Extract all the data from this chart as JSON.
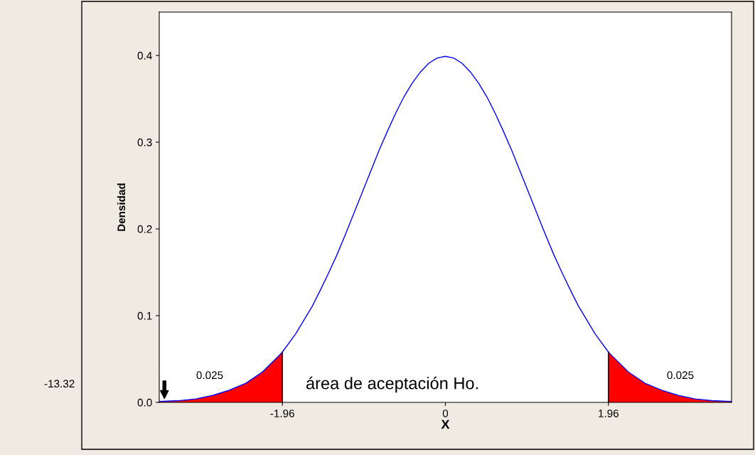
{
  "chart_data": {
    "type": "line",
    "xlabel": "X",
    "ylabel": "Densidad",
    "xlim": [
      -3.44,
      3.44
    ],
    "ylim": [
      0,
      0.45
    ],
    "xticks": [
      -1.96,
      0,
      1.96
    ],
    "yticks": [
      {
        "value": 0,
        "label": "0.0"
      },
      0.1,
      0.2,
      0.3,
      0.4
    ],
    "grid": false,
    "series": [
      {
        "color": "#0000ff",
        "x": [
          -3.44,
          -3.2,
          -3.0,
          -2.8,
          -2.6,
          -2.4,
          -2.2,
          -2.0,
          -1.96,
          -1.8,
          -1.6,
          -1.5,
          -1.4,
          -1.3,
          -1.2,
          -1.1,
          -1.0,
          -0.9,
          -0.8,
          -0.7,
          -0.6,
          -0.5,
          -0.4,
          -0.3,
          -0.2,
          -0.1,
          0,
          0.1,
          0.2,
          0.3,
          0.4,
          0.5,
          0.6,
          0.7,
          0.8,
          0.9,
          1.0,
          1.1,
          1.2,
          1.3,
          1.4,
          1.5,
          1.6,
          1.8,
          1.96,
          2.0,
          2.2,
          2.4,
          2.6,
          2.8,
          3.0,
          3.2,
          3.44
        ],
        "values": [
          0.001,
          0.002,
          0.004,
          0.008,
          0.014,
          0.022,
          0.035,
          0.054,
          0.058,
          0.079,
          0.111,
          0.13,
          0.15,
          0.171,
          0.194,
          0.218,
          0.242,
          0.266,
          0.29,
          0.312,
          0.333,
          0.352,
          0.368,
          0.381,
          0.391,
          0.397,
          0.399,
          0.397,
          0.391,
          0.381,
          0.368,
          0.352,
          0.333,
          0.312,
          0.29,
          0.266,
          0.242,
          0.218,
          0.194,
          0.171,
          0.15,
          0.13,
          0.111,
          0.079,
          0.058,
          0.054,
          0.035,
          0.022,
          0.014,
          0.008,
          0.004,
          0.002,
          0.001
        ]
      },
      {
        "type": "area",
        "color": "#ff0000",
        "x": [
          -3.44,
          -3.2,
          -3.0,
          -2.8,
          -2.6,
          -2.4,
          -2.2,
          -2.0,
          -1.96
        ],
        "values": [
          0.001,
          0.002,
          0.004,
          0.008,
          0.014,
          0.022,
          0.035,
          0.054,
          0.058
        ]
      },
      {
        "type": "area",
        "color": "#ff0000",
        "x": [
          1.96,
          2.0,
          2.2,
          2.4,
          2.6,
          2.8,
          3.0,
          3.2,
          3.44
        ],
        "values": [
          0.058,
          0.054,
          0.035,
          0.022,
          0.014,
          0.008,
          0.004,
          0.002,
          0.001
        ]
      },
      {
        "type": "line",
        "color": "#000000",
        "x": [
          -1.96,
          -1.96
        ],
        "values": [
          0,
          0.058
        ]
      },
      {
        "type": "line",
        "color": "#000000",
        "x": [
          1.96,
          1.96
        ],
        "values": [
          0,
          0.058
        ]
      }
    ],
    "annotations": [
      "0.025",
      "0.025",
      "área de aceptación Ho.",
      "-13.32"
    ]
  }
}
